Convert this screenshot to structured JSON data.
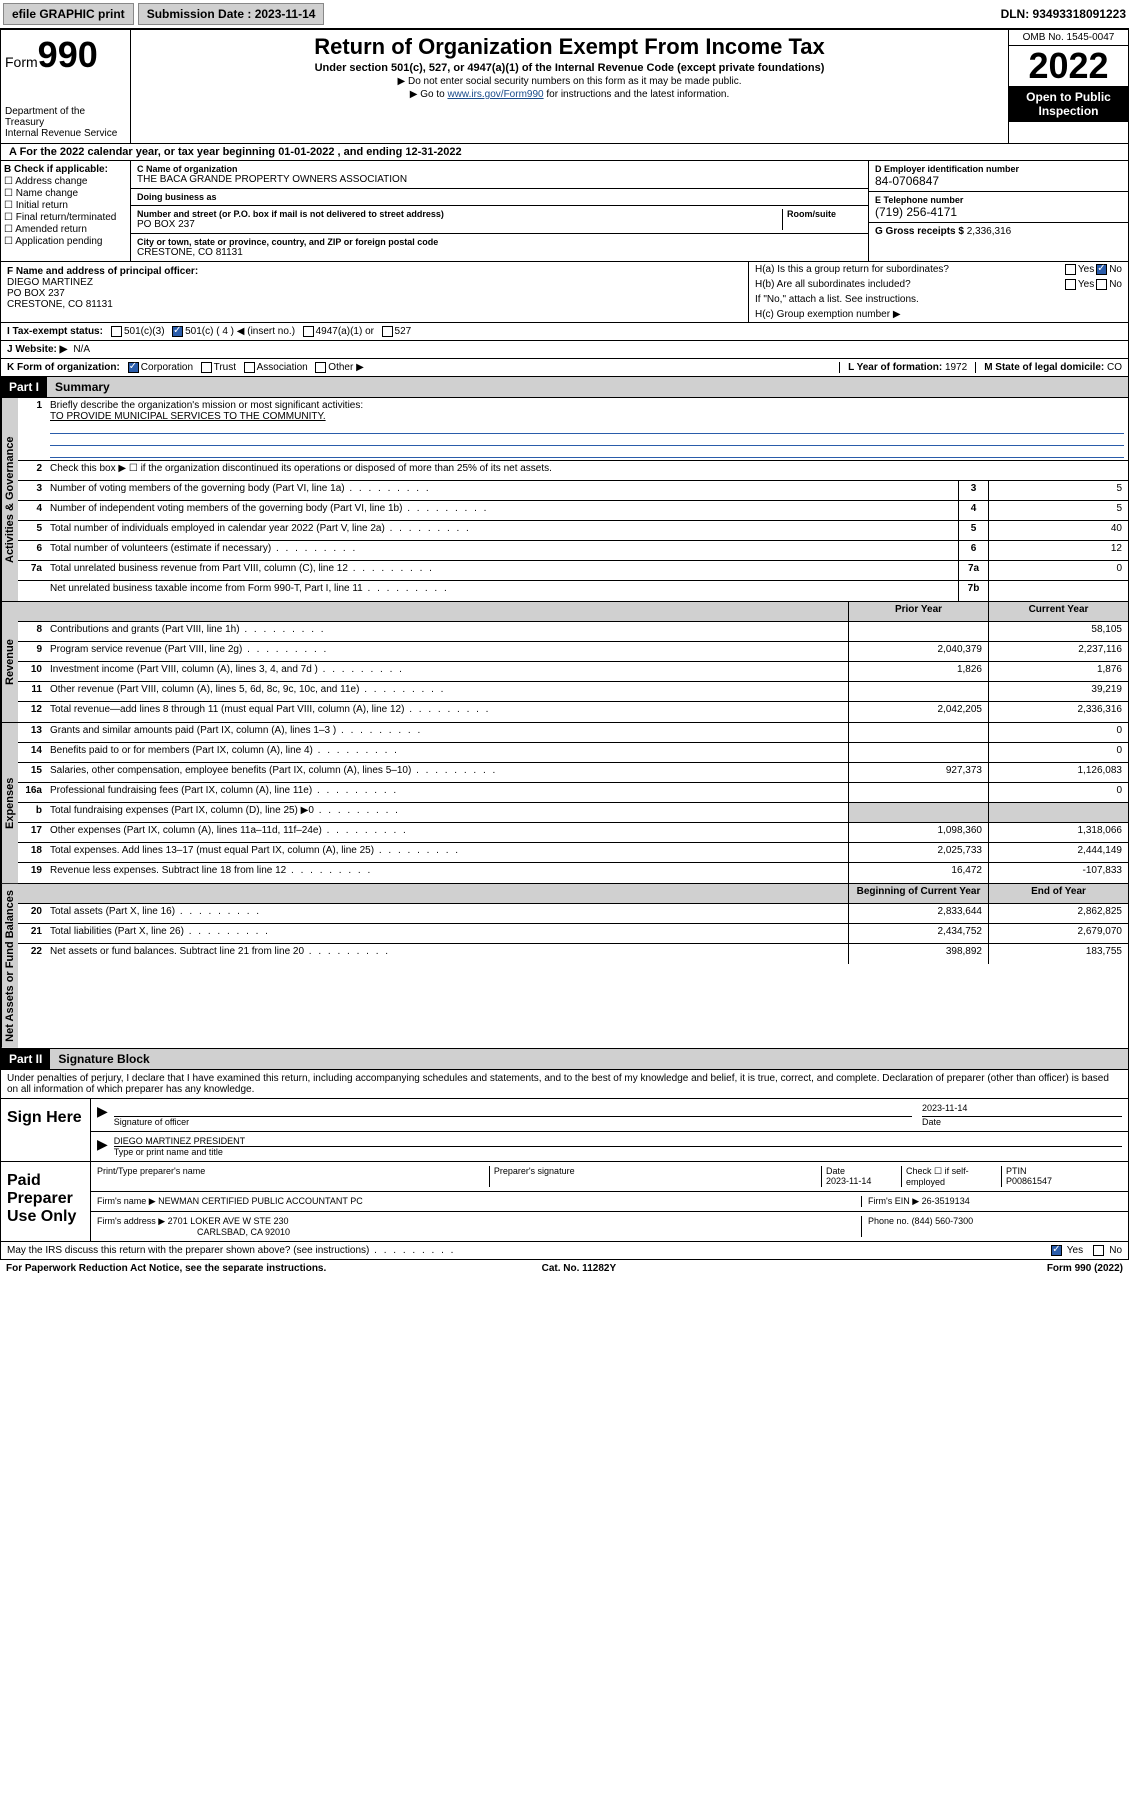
{
  "topbar": {
    "efile": "efile GRAPHIC print",
    "submission_label": "Submission Date : 2023-11-14",
    "dln": "DLN: 93493318091223"
  },
  "header": {
    "form_label": "Form",
    "form_num": "990",
    "dept": "Department of the Treasury\nInternal Revenue Service",
    "title": "Return of Organization Exempt From Income Tax",
    "subtitle": "Under section 501(c), 527, or 4947(a)(1) of the Internal Revenue Code (except private foundations)",
    "note1": "▶ Do not enter social security numbers on this form as it may be made public.",
    "note2_pre": "▶ Go to ",
    "note2_link": "www.irs.gov/Form990",
    "note2_post": " for instructions and the latest information.",
    "omb": "OMB No. 1545-0047",
    "year": "2022",
    "open_pub": "Open to Public Inspection"
  },
  "line_a": "A For the 2022 calendar year, or tax year beginning 01-01-2022   , and ending 12-31-2022",
  "box_b": {
    "label": "B Check if applicable:",
    "items": [
      "Address change",
      "Name change",
      "Initial return",
      "Final return/terminated",
      "Amended return",
      "Application pending"
    ]
  },
  "box_c": {
    "name_lbl": "C Name of organization",
    "name": "THE BACA GRANDE PROPERTY OWNERS ASSOCIATION",
    "dba_lbl": "Doing business as",
    "addr_lbl": "Number and street (or P.O. box if mail is not delivered to street address)",
    "room_lbl": "Room/suite",
    "addr": "PO BOX 237",
    "city_lbl": "City or town, state or province, country, and ZIP or foreign postal code",
    "city": "CRESTONE, CO  81131"
  },
  "box_d": {
    "lbl": "D Employer identification number",
    "val": "84-0706847"
  },
  "box_e": {
    "lbl": "E Telephone number",
    "val": "(719) 256-4171"
  },
  "box_g": {
    "lbl": "G Gross receipts $",
    "val": "2,336,316"
  },
  "box_f": {
    "lbl": "F Name and address of principal officer:",
    "name": "DIEGO MARTINEZ",
    "addr1": "PO BOX 237",
    "addr2": "CRESTONE, CO  81131"
  },
  "box_h": {
    "a": "H(a) Is this a group return for subordinates?",
    "b": "H(b) Are all subordinates included?",
    "note": "If \"No,\" attach a list. See instructions.",
    "c": "H(c) Group exemption number ▶"
  },
  "box_i": {
    "lbl": "I   Tax-exempt status:",
    "opts": [
      "501(c)(3)",
      "501(c) ( 4 ) ◀ (insert no.)",
      "4947(a)(1) or",
      "527"
    ]
  },
  "box_j": {
    "lbl": "J   Website: ▶",
    "val": "N/A"
  },
  "box_k": {
    "lbl": "K Form of organization:",
    "opts": [
      "Corporation",
      "Trust",
      "Association",
      "Other ▶"
    ]
  },
  "box_l": {
    "lbl": "L Year of formation:",
    "val": "1972"
  },
  "box_m": {
    "lbl": "M State of legal domicile:",
    "val": "CO"
  },
  "part1": {
    "hdr": "Part I",
    "title": "Summary",
    "q1": "Briefly describe the organization's mission or most significant activities:",
    "q1_ans": "TO PROVIDE MUNICIPAL SERVICES TO THE COMMUNITY.",
    "q2": "Check this box ▶ ☐ if the organization discontinued its operations or disposed of more than 25% of its net assets.",
    "side_ag": "Activities & Governance",
    "side_rev": "Revenue",
    "side_exp": "Expenses",
    "side_na": "Net Assets or Fund Balances",
    "rows_ag": [
      {
        "n": "3",
        "d": "Number of voting members of the governing body (Part VI, line 1a)",
        "b": "3",
        "v": "5"
      },
      {
        "n": "4",
        "d": "Number of independent voting members of the governing body (Part VI, line 1b)",
        "b": "4",
        "v": "5"
      },
      {
        "n": "5",
        "d": "Total number of individuals employed in calendar year 2022 (Part V, line 2a)",
        "b": "5",
        "v": "40"
      },
      {
        "n": "6",
        "d": "Total number of volunteers (estimate if necessary)",
        "b": "6",
        "v": "12"
      },
      {
        "n": "7a",
        "d": "Total unrelated business revenue from Part VIII, column (C), line 12",
        "b": "7a",
        "v": "0"
      },
      {
        "n": "",
        "d": "Net unrelated business taxable income from Form 990-T, Part I, line 11",
        "b": "7b",
        "v": ""
      }
    ],
    "col_hdrs": {
      "prior": "Prior Year",
      "current": "Current Year"
    },
    "rows_rev": [
      {
        "n": "8",
        "d": "Contributions and grants (Part VIII, line 1h)",
        "p": "",
        "c": "58,105"
      },
      {
        "n": "9",
        "d": "Program service revenue (Part VIII, line 2g)",
        "p": "2,040,379",
        "c": "2,237,116"
      },
      {
        "n": "10",
        "d": "Investment income (Part VIII, column (A), lines 3, 4, and 7d )",
        "p": "1,826",
        "c": "1,876"
      },
      {
        "n": "11",
        "d": "Other revenue (Part VIII, column (A), lines 5, 6d, 8c, 9c, 10c, and 11e)",
        "p": "",
        "c": "39,219"
      },
      {
        "n": "12",
        "d": "Total revenue—add lines 8 through 11 (must equal Part VIII, column (A), line 12)",
        "p": "2,042,205",
        "c": "2,336,316"
      }
    ],
    "rows_exp": [
      {
        "n": "13",
        "d": "Grants and similar amounts paid (Part IX, column (A), lines 1–3 )",
        "p": "",
        "c": "0"
      },
      {
        "n": "14",
        "d": "Benefits paid to or for members (Part IX, column (A), line 4)",
        "p": "",
        "c": "0"
      },
      {
        "n": "15",
        "d": "Salaries, other compensation, employee benefits (Part IX, column (A), lines 5–10)",
        "p": "927,373",
        "c": "1,126,083"
      },
      {
        "n": "16a",
        "d": "Professional fundraising fees (Part IX, column (A), line 11e)",
        "p": "",
        "c": "0"
      },
      {
        "n": "b",
        "d": "Total fundraising expenses (Part IX, column (D), line 25) ▶0",
        "p": "shade",
        "c": "shade"
      },
      {
        "n": "17",
        "d": "Other expenses (Part IX, column (A), lines 11a–11d, 11f–24e)",
        "p": "1,098,360",
        "c": "1,318,066"
      },
      {
        "n": "18",
        "d": "Total expenses. Add lines 13–17 (must equal Part IX, column (A), line 25)",
        "p": "2,025,733",
        "c": "2,444,149"
      },
      {
        "n": "19",
        "d": "Revenue less expenses. Subtract line 18 from line 12",
        "p": "16,472",
        "c": "-107,833"
      }
    ],
    "col_hdrs2": {
      "begin": "Beginning of Current Year",
      "end": "End of Year"
    },
    "rows_na": [
      {
        "n": "20",
        "d": "Total assets (Part X, line 16)",
        "p": "2,833,644",
        "c": "2,862,825"
      },
      {
        "n": "21",
        "d": "Total liabilities (Part X, line 26)",
        "p": "2,434,752",
        "c": "2,679,070"
      },
      {
        "n": "22",
        "d": "Net assets or fund balances. Subtract line 21 from line 20",
        "p": "398,892",
        "c": "183,755"
      }
    ]
  },
  "part2": {
    "hdr": "Part II",
    "title": "Signature Block",
    "penalty": "Under penalties of perjury, I declare that I have examined this return, including accompanying schedules and statements, and to the best of my knowledge and belief, it is true, correct, and complete. Declaration of preparer (other than officer) is based on all information of which preparer has any knowledge.",
    "sign_here": "Sign Here",
    "sig_officer": "Signature of officer",
    "sig_date": "2023-11-14",
    "date_lbl": "Date",
    "officer_name": "DIEGO MARTINEZ  PRESIDENT",
    "type_name": "Type or print name and title",
    "paid_prep": "Paid Preparer Use Only",
    "prep_name_lbl": "Print/Type preparer's name",
    "prep_sig_lbl": "Preparer's signature",
    "prep_date": "2023-11-14",
    "check_if": "Check ☐ if self-employed",
    "ptin_lbl": "PTIN",
    "ptin": "P00861547",
    "firm_name_lbl": "Firm's name    ▶",
    "firm_name": "NEWMAN CERTIFIED PUBLIC ACCOUNTANT PC",
    "firm_ein_lbl": "Firm's EIN ▶",
    "firm_ein": "26-3519134",
    "firm_addr_lbl": "Firm's address ▶",
    "firm_addr": "2701 LOKER AVE W STE 230",
    "firm_city": "CARLSBAD, CA  92010",
    "phone_lbl": "Phone no.",
    "phone": "(844) 560-7300",
    "may_irs": "May the IRS discuss this return with the preparer shown above? (see instructions)"
  },
  "footer": {
    "left": "For Paperwork Reduction Act Notice, see the separate instructions.",
    "mid": "Cat. No. 11282Y",
    "right": "Form 990 (2022)"
  }
}
